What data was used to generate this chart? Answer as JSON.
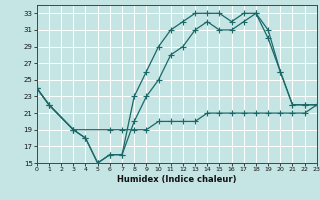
{
  "xlabel": "Humidex (Indice chaleur)",
  "xlim": [
    0,
    23
  ],
  "ylim": [
    15,
    34
  ],
  "yticks": [
    15,
    17,
    19,
    21,
    23,
    25,
    27,
    29,
    31,
    33
  ],
  "xticks": [
    0,
    1,
    2,
    3,
    4,
    5,
    6,
    7,
    8,
    9,
    10,
    11,
    12,
    13,
    14,
    15,
    16,
    17,
    18,
    19,
    20,
    21,
    22,
    23
  ],
  "bg_color": "#c5e5e5",
  "line_color": "#1a6868",
  "grid_color": "#ffffff",
  "line1_x": [
    0,
    1,
    3,
    4,
    5,
    6,
    7,
    8,
    9,
    10,
    11,
    12,
    13,
    14,
    15,
    16,
    17,
    18,
    19,
    20,
    21,
    22,
    23
  ],
  "line1_y": [
    24,
    22,
    19,
    18,
    15,
    16,
    16,
    23,
    26,
    29,
    31,
    32,
    33,
    33,
    33,
    32,
    33,
    33,
    31,
    26,
    22,
    22,
    22
  ],
  "line2_x": [
    0,
    1,
    3,
    4,
    5,
    6,
    7,
    8,
    9,
    10,
    11,
    12,
    13,
    14,
    15,
    16,
    17,
    18,
    19,
    20,
    21,
    22,
    23
  ],
  "line2_y": [
    24,
    22,
    19,
    18,
    15,
    16,
    16,
    20,
    23,
    25,
    28,
    29,
    31,
    32,
    31,
    31,
    32,
    33,
    30,
    26,
    22,
    22,
    22
  ],
  "line3_x": [
    0,
    1,
    3,
    6,
    7,
    8,
    9,
    10,
    11,
    12,
    13,
    14,
    15,
    16,
    17,
    18,
    19,
    20,
    21,
    22,
    23
  ],
  "line3_y": [
    24,
    22,
    19,
    19,
    19,
    19,
    19,
    20,
    20,
    20,
    20,
    21,
    21,
    21,
    21,
    21,
    21,
    21,
    21,
    21,
    22
  ]
}
